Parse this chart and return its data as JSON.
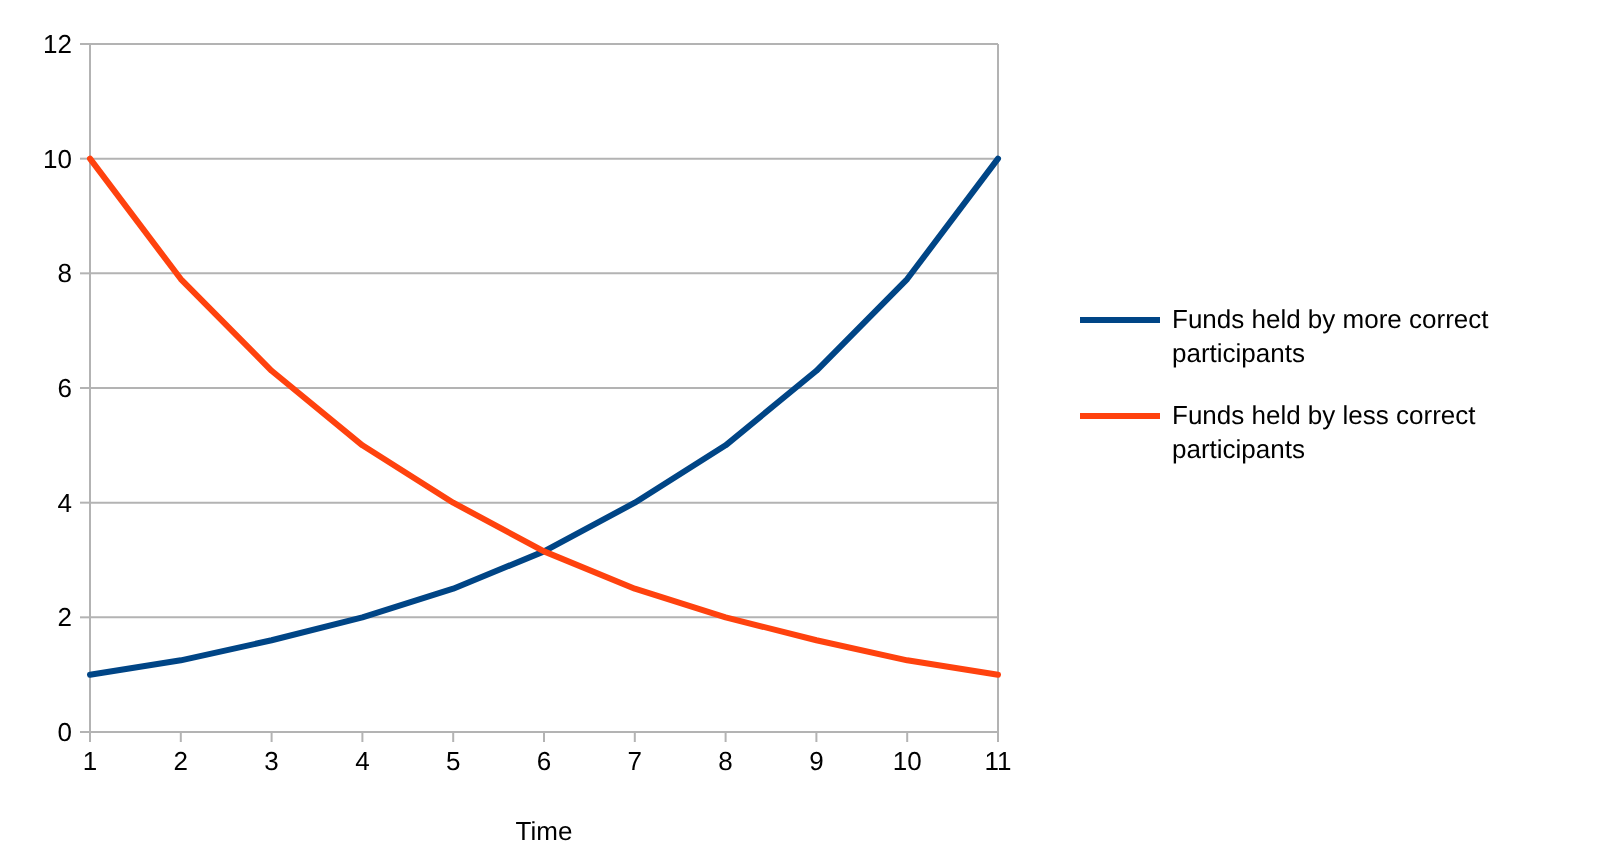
{
  "chart_data": {
    "type": "line",
    "xlabel": "Time",
    "x": [
      1,
      2,
      3,
      4,
      5,
      6,
      7,
      8,
      9,
      10,
      11
    ],
    "series": [
      {
        "name": "Funds held by more correct participants",
        "color": "#004586",
        "values": [
          1,
          1.25,
          1.6,
          2,
          2.5,
          3.15,
          4,
          5,
          6.3,
          7.9,
          10
        ]
      },
      {
        "name": "Funds held by less correct participants",
        "color": "#ff420e",
        "values": [
          10,
          7.9,
          6.3,
          5,
          4,
          3.15,
          2.5,
          2,
          1.6,
          1.25,
          1
        ]
      }
    ],
    "xlim": [
      1,
      11
    ],
    "xticks": [
      1,
      2,
      3,
      4,
      5,
      6,
      7,
      8,
      9,
      10,
      11
    ],
    "ylim": [
      0,
      12
    ],
    "yticks": [
      0,
      2,
      4,
      6,
      8,
      10,
      12
    ],
    "grid": "y",
    "legend": "right",
    "marker": "none",
    "line_style": "solid"
  }
}
